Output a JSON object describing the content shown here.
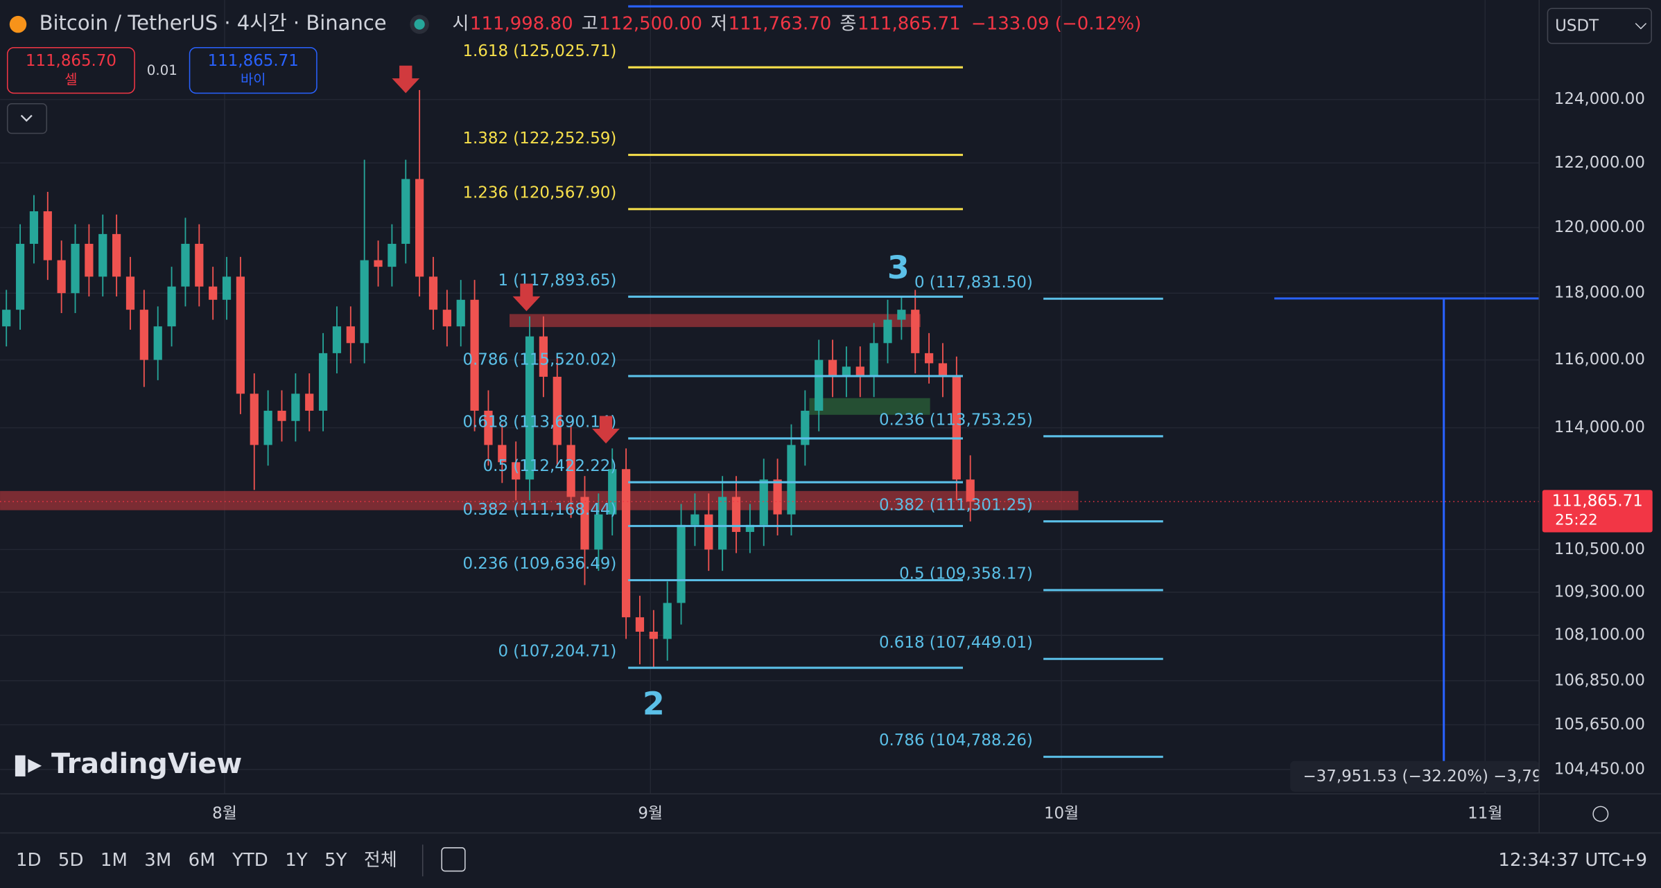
{
  "header": {
    "symbol": "Bitcoin / TetherUS · 4시간 · Binance",
    "ohlc": [
      {
        "label": "시",
        "value": "111,998.80"
      },
      {
        "label": "고",
        "value": "112,500.00"
      },
      {
        "label": "저",
        "value": "111,763.70"
      },
      {
        "label": "종",
        "value": "111,865.71"
      }
    ],
    "change": "−133.09 (−0.12%)"
  },
  "trade": {
    "sell_price": "111,865.70",
    "sell_label": "셀",
    "quantity": "0.01",
    "buy_price": "111,865.71",
    "buy_label": "바이"
  },
  "currency": "USDT",
  "watermark": "TradingView",
  "toolbar": {
    "ranges": [
      "1D",
      "5D",
      "1M",
      "3M",
      "6M",
      "YTD",
      "1Y",
      "5Y",
      "전체"
    ],
    "clock": "12:34:37 UTC+9"
  },
  "chart_data": {
    "type": "candlestick",
    "log_scale": true,
    "grid": true,
    "up_color": "#26a69a",
    "down_color": "#ef5350",
    "ylim": [
      103800,
      127200
    ],
    "yticks": [
      {
        "value": 104450,
        "label": "104,450.00"
      },
      {
        "value": 105650,
        "label": "105,650.00"
      },
      {
        "value": 106850,
        "label": "106,850.00"
      },
      {
        "value": 108100,
        "label": "108,100.00"
      },
      {
        "value": 109300,
        "label": "109,300.00"
      },
      {
        "value": 110500,
        "label": "110,500.00"
      },
      {
        "value": 114000,
        "label": "114,000.00"
      },
      {
        "value": 116000,
        "label": "116,000.00"
      },
      {
        "value": 118000,
        "label": "118,000.00"
      },
      {
        "value": 120000,
        "label": "120,000.00"
      },
      {
        "value": 122000,
        "label": "122,000.00"
      },
      {
        "value": 124000,
        "label": "124,000.00"
      }
    ],
    "x_labels": [
      "8월",
      "9월",
      "10월",
      "11월"
    ],
    "candles": [
      [
        117000,
        118100,
        116400,
        117500
      ],
      [
        117500,
        120100,
        116900,
        119500
      ],
      [
        119500,
        121000,
        118900,
        120500
      ],
      [
        120500,
        121100,
        118400,
        119000
      ],
      [
        119000,
        119600,
        117400,
        118000
      ],
      [
        118000,
        120100,
        117400,
        119500
      ],
      [
        119500,
        120100,
        117900,
        118500
      ],
      [
        118500,
        120400,
        117900,
        119800
      ],
      [
        119800,
        120400,
        117900,
        118500
      ],
      [
        118500,
        119100,
        116900,
        117500
      ],
      [
        117500,
        118100,
        115200,
        116000
      ],
      [
        116000,
        117600,
        115400,
        117000
      ],
      [
        117000,
        118800,
        116400,
        118200
      ],
      [
        118200,
        120300,
        117600,
        119500
      ],
      [
        119500,
        120100,
        117600,
        118200
      ],
      [
        118200,
        118800,
        117200,
        117800
      ],
      [
        117800,
        119100,
        117200,
        118500
      ],
      [
        118500,
        119100,
        114400,
        115000
      ],
      [
        115000,
        115600,
        112200,
        113500
      ],
      [
        113500,
        115100,
        112900,
        114500
      ],
      [
        114500,
        115100,
        113600,
        114200
      ],
      [
        114200,
        115600,
        113600,
        115000
      ],
      [
        115000,
        115600,
        113900,
        114500
      ],
      [
        114500,
        116800,
        113900,
        116200
      ],
      [
        116200,
        117600,
        115600,
        117000
      ],
      [
        117000,
        117600,
        115900,
        116500
      ],
      [
        116500,
        122100,
        115900,
        119000
      ],
      [
        119000,
        119600,
        118200,
        118800
      ],
      [
        118800,
        120100,
        118200,
        119500
      ],
      [
        119500,
        122100,
        118900,
        121500
      ],
      [
        121500,
        124300,
        117900,
        118500
      ],
      [
        118500,
        119100,
        116900,
        117500
      ],
      [
        117500,
        118100,
        116400,
        117000
      ],
      [
        117000,
        118400,
        116400,
        117800
      ],
      [
        117800,
        118400,
        113900,
        114500
      ],
      [
        114500,
        115100,
        112900,
        113500
      ],
      [
        113500,
        114100,
        112400,
        113000
      ],
      [
        113000,
        113600,
        111900,
        112500
      ],
      [
        112500,
        117300,
        111900,
        116700
      ],
      [
        116700,
        117300,
        114900,
        115500
      ],
      [
        115500,
        116100,
        112900,
        113500
      ],
      [
        113500,
        114100,
        111400,
        112000
      ],
      [
        112000,
        112600,
        109500,
        110500
      ],
      [
        110500,
        112100,
        109900,
        111500
      ],
      [
        111500,
        113400,
        110900,
        112800
      ],
      [
        112800,
        113400,
        108000,
        108600
      ],
      [
        108600,
        109200,
        107300,
        108200
      ],
      [
        108200,
        108800,
        107200,
        108000
      ],
      [
        108000,
        109600,
        107400,
        109000
      ],
      [
        109000,
        111800,
        108400,
        111200
      ],
      [
        111200,
        112100,
        110600,
        111500
      ],
      [
        111500,
        112100,
        109900,
        110500
      ],
      [
        110500,
        112600,
        109900,
        112000
      ],
      [
        112000,
        112600,
        110400,
        111000
      ],
      [
        111000,
        111800,
        110400,
        111200
      ],
      [
        111200,
        113100,
        110600,
        112500
      ],
      [
        112500,
        113100,
        110900,
        111500
      ],
      [
        111500,
        114100,
        110900,
        113500
      ],
      [
        113500,
        115100,
        112900,
        114500
      ],
      [
        114500,
        116600,
        113900,
        116000
      ],
      [
        116000,
        116600,
        114900,
        115500
      ],
      [
        115500,
        116400,
        114900,
        115800
      ],
      [
        115800,
        116400,
        114900,
        115500
      ],
      [
        115500,
        117100,
        114900,
        116500
      ],
      [
        116500,
        117800,
        115900,
        117200
      ],
      [
        117200,
        117900,
        116600,
        117500
      ],
      [
        117500,
        118100,
        115600,
        116200
      ],
      [
        116200,
        116800,
        115300,
        115900
      ],
      [
        115900,
        116500,
        114900,
        115500
      ],
      [
        115500,
        116100,
        111900,
        112500
      ],
      [
        112500,
        113200,
        111300,
        111865.71
      ]
    ],
    "fib_retracement": [
      {
        "label": "1.618 (125,025.71)",
        "price": 125025.71,
        "color": "#f7e04b"
      },
      {
        "label": "1.382 (122,252.59)",
        "price": 122252.59,
        "color": "#f7e04b"
      },
      {
        "label": "1.236 (120,567.90)",
        "price": 120567.9,
        "color": "#f7e04b"
      },
      {
        "label": "1 (117,893.65)",
        "price": 117893.65,
        "color": "#5bc0e8"
      },
      {
        "label": "0.786 (115,520.02)",
        "price": 115520.02,
        "color": "#5bc0e8"
      },
      {
        "label": "0.618 (113,690.14)",
        "price": 113690.14,
        "color": "#5bc0e8"
      },
      {
        "label": "0.5 (112,422.22)",
        "price": 112422.22,
        "color": "#5bc0e8"
      },
      {
        "label": "0.382 (111,168.44)",
        "price": 111168.44,
        "color": "#5bc0e8"
      },
      {
        "label": "0.236 (109,636.49)",
        "price": 109636.49,
        "color": "#5bc0e8"
      },
      {
        "label": "0 (107,204.71)",
        "price": 107204.71,
        "color": "#5bc0e8"
      }
    ],
    "fib_extension": [
      {
        "label": "0 (117,831.50)",
        "price": 117831.5,
        "color": "#5bc0e8"
      },
      {
        "label": "0.236 (113,753.25)",
        "price": 113753.25,
        "color": "#5bc0e8"
      },
      {
        "label": "0.382 (111,301.25)",
        "price": 111301.25,
        "color": "#5bc0e8"
      },
      {
        "label": "0.5 (109,358.17)",
        "price": 109358.17,
        "color": "#5bc0e8"
      },
      {
        "label": "0.618 (107,449.01)",
        "price": 107449.01,
        "color": "#5bc0e8"
      },
      {
        "label": "0.786 (104,788.26)",
        "price": 104788.26,
        "color": "#5bc0e8"
      }
    ],
    "zones": [
      {
        "low": 116980,
        "high": 117370,
        "color": "#b2363a"
      },
      {
        "low": 114380,
        "high": 114870,
        "color": "#2e6b3a"
      },
      {
        "low": 111620,
        "high": 112170,
        "color": "#b2363a"
      }
    ],
    "waves": [
      "2",
      "3"
    ],
    "last_price": {
      "value": 111865.71,
      "label": "111,865.71",
      "countdown": "25:22"
    },
    "measure": "−37,951.53 (−32.20%) −3,79"
  }
}
